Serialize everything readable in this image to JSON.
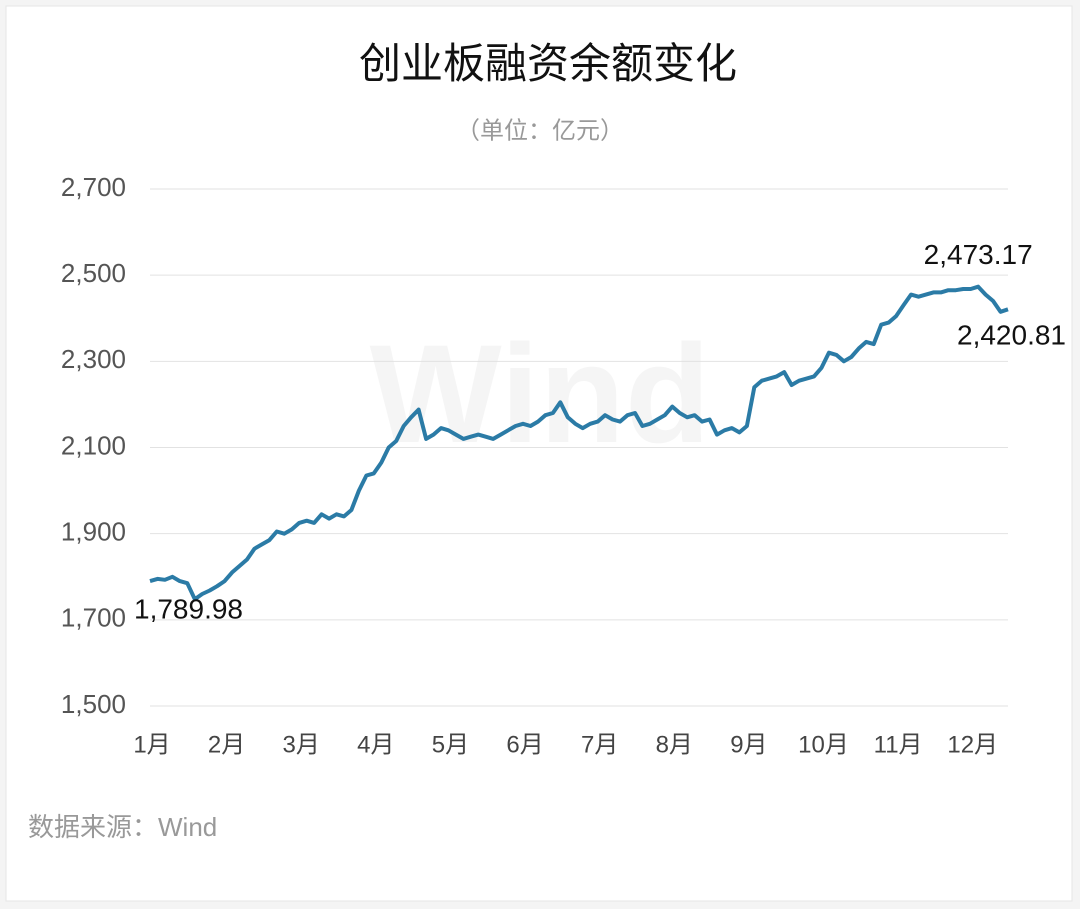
{
  "chart_data": {
    "type": "line",
    "title": "创业板融资余额变化",
    "subtitle": "（单位：亿元）",
    "source": "数据来源：Wind",
    "watermark": "Wind",
    "categories": [
      "1月",
      null,
      null,
      null,
      null,
      null,
      null,
      null,
      null,
      null,
      "2月",
      null,
      null,
      null,
      null,
      null,
      null,
      null,
      null,
      null,
      "3月",
      null,
      null,
      null,
      null,
      null,
      null,
      null,
      null,
      null,
      "4月",
      null,
      null,
      null,
      null,
      null,
      null,
      null,
      null,
      null,
      "5月",
      null,
      null,
      null,
      null,
      null,
      null,
      null,
      null,
      null,
      "6月",
      null,
      null,
      null,
      null,
      null,
      null,
      null,
      null,
      null,
      "7月",
      null,
      null,
      null,
      null,
      null,
      null,
      null,
      null,
      null,
      "8月",
      null,
      null,
      null,
      null,
      null,
      null,
      null,
      null,
      null,
      "9月",
      null,
      null,
      null,
      null,
      null,
      null,
      null,
      null,
      null,
      "10月",
      null,
      null,
      null,
      null,
      null,
      null,
      null,
      null,
      null,
      "11月",
      null,
      null,
      null,
      null,
      null,
      null,
      null,
      null,
      null,
      "12月",
      null,
      null,
      null,
      null,
      null
    ],
    "series": [
      {
        "name": "创业板融资余额",
        "color": "#2b7ba6",
        "values": [
          1789.98,
          1795,
          1793,
          1800,
          1790,
          1785,
          1748,
          1760,
          1768,
          1778,
          1790,
          1810,
          1825,
          1840,
          1865,
          1875,
          1885,
          1905,
          1900,
          1910,
          1925,
          1930,
          1925,
          1945,
          1935,
          1945,
          1940,
          1955,
          2000,
          2035,
          2040,
          2065,
          2100,
          2115,
          2150,
          2170,
          2188,
          2120,
          2130,
          2145,
          2140,
          2130,
          2120,
          2125,
          2130,
          2125,
          2120,
          2130,
          2140,
          2150,
          2155,
          2150,
          2160,
          2175,
          2180,
          2205,
          2170,
          2155,
          2145,
          2155,
          2160,
          2175,
          2165,
          2160,
          2175,
          2180,
          2150,
          2155,
          2165,
          2175,
          2195,
          2180,
          2170,
          2175,
          2160,
          2165,
          2130,
          2140,
          2145,
          2135,
          2150,
          2240,
          2255,
          2260,
          2265,
          2275,
          2245,
          2255,
          2260,
          2265,
          2285,
          2320,
          2315,
          2300,
          2310,
          2330,
          2345,
          2340,
          2385,
          2390,
          2405,
          2430,
          2455,
          2450,
          2455,
          2460,
          2460,
          2465,
          2465,
          2468,
          2468,
          2473.17,
          2455,
          2440,
          2415,
          2420.81
        ],
        "value_labels": [
          "1,789.98",
          null,
          null,
          null,
          null,
          null,
          null,
          null,
          null,
          null,
          null,
          null,
          null,
          null,
          null,
          null,
          null,
          null,
          null,
          null,
          null,
          null,
          null,
          null,
          null,
          null,
          null,
          null,
          null,
          null,
          null,
          null,
          null,
          null,
          null,
          null,
          null,
          null,
          null,
          null,
          null,
          null,
          null,
          null,
          null,
          null,
          null,
          null,
          null,
          null,
          null,
          null,
          null,
          null,
          null,
          null,
          null,
          null,
          null,
          null,
          null,
          null,
          null,
          null,
          null,
          null,
          null,
          null,
          null,
          null,
          null,
          null,
          null,
          null,
          null,
          null,
          null,
          null,
          null,
          null,
          null,
          null,
          null,
          null,
          null,
          null,
          null,
          null,
          null,
          null,
          null,
          null,
          null,
          null,
          null,
          null,
          null,
          null,
          null,
          null,
          null,
          null,
          null,
          null,
          null,
          null,
          null,
          null,
          null,
          null,
          null,
          "2,473.17",
          null,
          null,
          null,
          "2,420.81"
        ]
      }
    ],
    "ylim": [
      1500,
      2700
    ],
    "yticks": [
      {
        "value": 1500,
        "label": "1,500"
      },
      {
        "value": 1700,
        "label": "1,700"
      },
      {
        "value": 1900,
        "label": "1,900"
      },
      {
        "value": 2100,
        "label": "2,100"
      },
      {
        "value": 2300,
        "label": "2,300"
      },
      {
        "value": 2500,
        "label": "2,500"
      },
      {
        "value": 2700,
        "label": "2,700"
      }
    ],
    "grid": true
  }
}
